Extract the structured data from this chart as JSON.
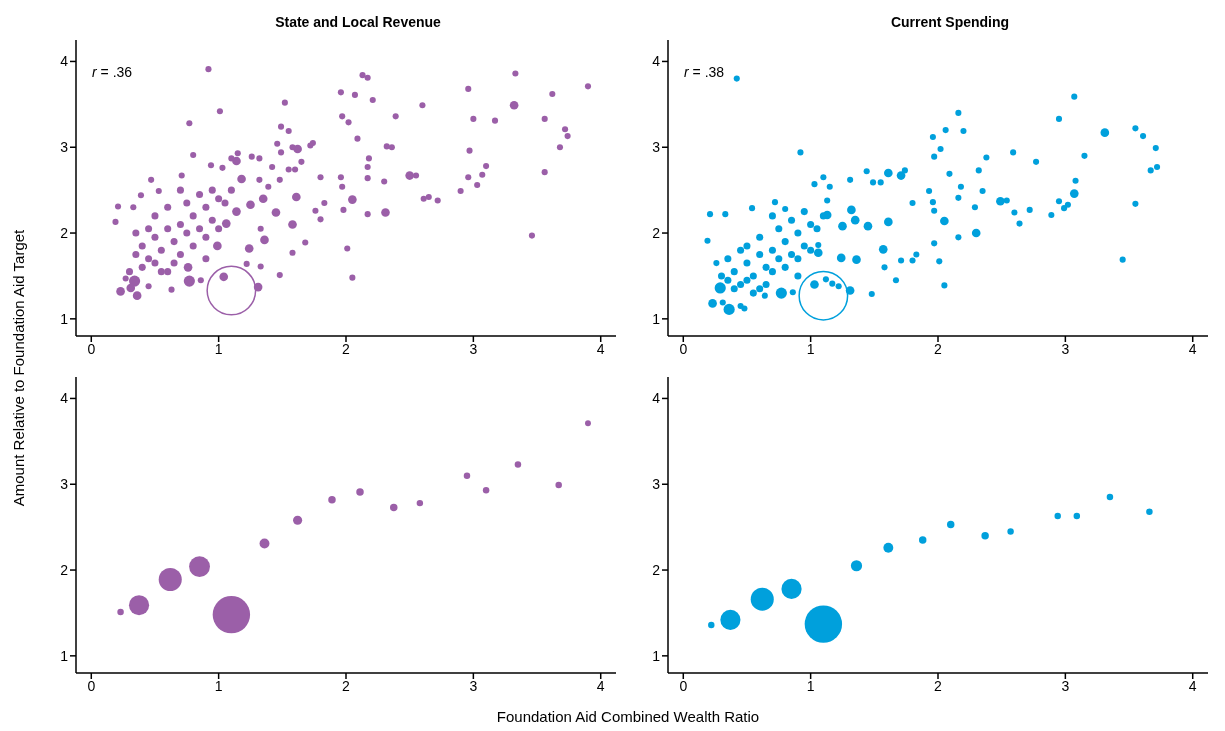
{
  "chart_data": [
    {
      "type": "bubble",
      "title": "State and Local Revenue",
      "ylabel": "Amount Relative to Foundation Aid Target",
      "annotations": [
        "r = .36"
      ],
      "color": "#9b5fa8",
      "x": [
        0.92,
        1.01,
        0.77,
        1.52,
        2.13,
        2.17,
        1.96,
        2.07,
        2.21,
        2.6,
        2.96,
        3.33,
        3.9,
        3.62,
        3.32,
        3.0,
        3.17,
        3.56,
        3.72,
        3.74,
        3.68,
        2.97,
        3.1,
        3.07,
        2.96,
        3.03,
        2.9,
        3.56,
        3.46,
        2.39,
        1.97,
        2.02,
        2.09,
        2.32,
        2.36,
        2.18,
        2.17,
        2.17,
        2.3,
        2.5,
        2.55,
        2.61,
        2.65,
        2.72,
        1.96,
        1.97,
        2.05,
        1.98,
        2.17,
        2.31,
        2.01,
        2.05,
        1.83,
        1.8,
        1.76,
        1.8,
        1.74,
        1.72,
        1.62,
        1.58,
        1.55,
        1.49,
        1.46,
        1.49,
        1.65,
        1.55,
        1.6,
        1.42,
        1.48,
        1.39,
        1.32,
        1.26,
        1.32,
        1.15,
        1.1,
        1.14,
        1.03,
        0.94,
        0.71,
        0.8,
        0.47,
        0.21,
        0.19,
        0.33,
        0.39,
        0.53,
        1.18,
        1.35,
        1.61,
        1.25,
        1.45,
        1.58,
        1.36,
        1.24,
        1.58,
        1.68,
        1.33,
        1.48,
        1.33,
        1.22,
        1.04,
        1.31,
        1.1,
        0.77,
        0.36,
        0.31,
        0.23,
        0.34,
        0.27,
        0.45,
        0.63,
        0.86,
        0.76,
        0.99,
        1.06,
        1.14,
        0.35,
        0.4,
        0.45,
        0.5,
        0.55,
        0.6,
        0.65,
        0.7,
        0.75,
        0.8,
        0.85,
        0.9,
        0.95,
        1.0,
        1.05,
        0.5,
        0.6,
        0.7,
        0.8,
        0.9,
        0.4,
        0.55,
        0.65,
        0.3,
        0.45,
        0.75,
        0.85,
        0.95,
        1.0,
        0.6,
        0.7,
        0.35,
        0.5,
        1.1,
        0.9
      ],
      "values": [
        3.91,
        3.42,
        3.28,
        3.52,
        3.84,
        3.81,
        3.64,
        3.61,
        3.55,
        3.49,
        3.68,
        3.86,
        3.71,
        3.62,
        3.49,
        3.33,
        3.31,
        3.33,
        3.21,
        3.13,
        3.0,
        2.96,
        2.78,
        2.68,
        2.65,
        2.56,
        2.49,
        2.71,
        1.97,
        3.36,
        3.36,
        3.29,
        3.1,
        3.01,
        3.0,
        2.87,
        2.77,
        2.64,
        2.6,
        2.67,
        2.67,
        2.4,
        2.42,
        2.38,
        2.65,
        2.54,
        2.39,
        2.27,
        2.22,
        2.24,
        1.82,
        1.48,
        2.35,
        2.16,
        2.26,
        2.65,
        3.05,
        3.02,
        2.98,
        3.0,
        3.19,
        3.24,
        3.04,
        2.94,
        2.83,
        2.74,
        2.74,
        2.77,
        2.62,
        2.54,
        2.62,
        2.89,
        2.87,
        2.93,
        2.87,
        2.84,
        2.76,
        2.79,
        2.67,
        2.91,
        2.62,
        2.31,
        2.13,
        2.3,
        2.44,
        2.49,
        2.63,
        2.4,
        2.42,
        2.33,
        2.24,
        2.1,
        1.92,
        1.82,
        1.77,
        1.89,
        2.05,
        1.51,
        1.61,
        1.64,
        1.49,
        1.37,
        1.33,
        1.44,
        1.27,
        1.36,
        1.32,
        1.44,
        1.47,
        1.38,
        1.34,
        1.45,
        1.6,
        1.85,
        2.11,
        2.25,
        1.75,
        1.85,
        1.7,
        1.95,
        1.8,
        2.05,
        1.9,
        2.1,
        2.0,
        2.2,
        2.05,
        2.3,
        2.15,
        2.4,
        2.35,
        2.2,
        2.3,
        1.75,
        1.85,
        1.95,
        1.6,
        1.55,
        1.65,
        1.55,
        2.05,
        2.35,
        2.45,
        2.5,
        2.05,
        1.55,
        2.5,
        2.0,
        1.65,
        2.5,
        1.7
      ],
      "sizes": [
        0.015,
        0.015,
        0.015,
        0.015,
        0.015,
        0.015,
        0.015,
        0.015,
        0.015,
        0.015,
        0.015,
        0.015,
        0.015,
        0.015,
        0.03,
        0.015,
        0.015,
        0.015,
        0.015,
        0.015,
        0.015,
        0.015,
        0.015,
        0.015,
        0.015,
        0.015,
        0.015,
        0.015,
        0.015,
        0.015,
        0.015,
        0.015,
        0.015,
        0.015,
        0.015,
        0.015,
        0.015,
        0.015,
        0.015,
        0.03,
        0.015,
        0.015,
        0.015,
        0.015,
        0.015,
        0.015,
        0.03,
        0.015,
        0.015,
        0.03,
        0.015,
        0.015,
        0.015,
        0.015,
        0.015,
        0.015,
        0.015,
        0.015,
        0.03,
        0.015,
        0.015,
        0.015,
        0.015,
        0.015,
        0.015,
        0.015,
        0.015,
        0.015,
        0.015,
        0.015,
        0.015,
        0.015,
        0.015,
        0.015,
        0.015,
        0.03,
        0.015,
        0.015,
        0.015,
        0.015,
        0.015,
        0.015,
        0.015,
        0.015,
        0.015,
        0.015,
        0.03,
        0.03,
        0.03,
        0.03,
        0.03,
        0.03,
        0.03,
        0.03,
        0.015,
        0.015,
        0.015,
        0.015,
        0.015,
        0.015,
        0.03,
        0.03,
        1,
        0.05,
        0.03,
        0.03,
        0.03,
        0.05,
        0.015,
        0.015,
        0.015,
        0.015,
        0.03,
        0.03,
        0.03,
        0.03,
        0.02,
        0.02,
        0.02,
        0.02,
        0.02,
        0.02,
        0.02,
        0.02,
        0.02,
        0.02,
        0.02,
        0.02,
        0.02,
        0.02,
        0.02,
        0.02,
        0.02,
        0.02,
        0.02,
        0.02,
        0.02,
        0.02,
        0.02,
        0.02,
        0.02,
        0.02,
        0.02,
        0.02,
        0.02,
        0.02,
        0.02,
        0.02,
        0.02,
        0.02,
        0.02
      ],
      "xlim": [
        -0.12,
        4.12
      ],
      "xticks": [
        0,
        1,
        2,
        3,
        4
      ],
      "ylim": [
        0.8,
        4.25
      ],
      "yticks": [
        1,
        2,
        3,
        4
      ]
    },
    {
      "type": "bubble",
      "title": "Current Spending",
      "annotations": [
        "r = .38"
      ],
      "color": "#00a0dc",
      "x": [
        0.42,
        0.92,
        3.07,
        2.16,
        2.95,
        2.06,
        2.2,
        1.96,
        2.02,
        1.97,
        3.31,
        3.55,
        3.61,
        3.71,
        3.72,
        3.67,
        3.15,
        2.59,
        2.77,
        2.38,
        2.32,
        2.09,
        2.35,
        2.16,
        2.18,
        2.49,
        2.54,
        2.29,
        2.3,
        2.16,
        2.05,
        1.96,
        1.97,
        1.93,
        1.8,
        1.74,
        1.71,
        1.61,
        1.55,
        1.49,
        1.44,
        1.31,
        1.1,
        1.03,
        1.15,
        2.95,
        3.07,
        3.08,
        2.99,
        2.89,
        2.72,
        2.6,
        2.64,
        3.02,
        3.55,
        3.45,
        2.05,
        2.01,
        1.97,
        1.83,
        1.8,
        1.71,
        1.67,
        1.57,
        1.58,
        1.48,
        1.36,
        1.24,
        1.31,
        1.22,
        1.17,
        1.12,
        1.03,
        1.1,
        0.77,
        0.36,
        0.23,
        0.29,
        0.31,
        0.45,
        0.48,
        0.64,
        0.86,
        0.19,
        0.21,
        0.33,
        0.26,
        0.54,
        0.72,
        0.8,
        1.35,
        1.45,
        1.61,
        1.06,
        1.06,
        1.13,
        1.25,
        1.32,
        1.13,
        0.35,
        0.4,
        0.45,
        0.5,
        0.55,
        0.6,
        0.65,
        0.7,
        0.75,
        0.8,
        0.85,
        0.9,
        0.95,
        1.0,
        1.05,
        0.5,
        0.6,
        0.7,
        0.8,
        0.9,
        0.4,
        0.55,
        0.65,
        0.3,
        0.45,
        0.75,
        0.85,
        0.95,
        1.0,
        0.6,
        0.7,
        0.35,
        0.5,
        1.1,
        0.9
      ],
      "values": [
        3.8,
        2.94,
        3.59,
        3.4,
        3.33,
        3.2,
        3.19,
        3.12,
        2.98,
        2.89,
        3.17,
        3.22,
        3.13,
        2.99,
        2.77,
        2.73,
        2.9,
        2.94,
        2.83,
        2.88,
        2.73,
        2.69,
        2.49,
        2.41,
        2.54,
        2.37,
        2.38,
        2.3,
        2.0,
        1.95,
        2.14,
        2.36,
        2.26,
        2.49,
        2.35,
        2.73,
        2.67,
        2.7,
        2.59,
        2.59,
        2.72,
        2.62,
        2.65,
        2.57,
        2.54,
        2.37,
        2.46,
        2.61,
        2.29,
        2.21,
        2.27,
        2.24,
        2.11,
        2.33,
        2.34,
        1.69,
        1.39,
        1.67,
        1.88,
        1.75,
        1.68,
        1.68,
        1.45,
        1.81,
        1.6,
        1.29,
        1.69,
        1.71,
        1.33,
        1.38,
        1.41,
        1.46,
        1.4,
        1.27,
        1.3,
        1.11,
        1.18,
        1.36,
        1.19,
        1.15,
        1.12,
        1.27,
        1.31,
        1.91,
        2.22,
        2.22,
        1.65,
        2.29,
        2.36,
        2.28,
        2.15,
        2.08,
        2.13,
        1.77,
        1.86,
        2.21,
        2.08,
        2.27,
        2.38,
        1.45,
        1.55,
        1.4,
        1.65,
        1.5,
        1.75,
        1.6,
        1.8,
        1.7,
        1.9,
        1.75,
        2.0,
        1.85,
        2.1,
        2.05,
        1.85,
        1.95,
        1.55,
        1.6,
        1.7,
        1.35,
        1.3,
        1.4,
        1.5,
        1.8,
        2.05,
        2.15,
        2.25,
        1.8,
        1.35,
        2.2,
        1.7,
        1.45,
        2.2,
        1.5
      ],
      "sizes": [
        0.015,
        0.015,
        0.015,
        0.015,
        0.015,
        0.015,
        0.015,
        0.015,
        0.015,
        0.015,
        0.03,
        0.015,
        0.015,
        0.015,
        0.015,
        0.015,
        0.015,
        0.015,
        0.015,
        0.015,
        0.015,
        0.015,
        0.015,
        0.015,
        0.015,
        0.03,
        0.015,
        0.015,
        0.03,
        0.015,
        0.03,
        0.015,
        0.015,
        0.015,
        0.015,
        0.015,
        0.03,
        0.03,
        0.015,
        0.015,
        0.015,
        0.015,
        0.015,
        0.015,
        0.015,
        0.015,
        0.03,
        0.015,
        0.015,
        0.015,
        0.015,
        0.015,
        0.015,
        0.015,
        0.015,
        0.015,
        0.015,
        0.015,
        0.015,
        0.015,
        0.015,
        0.015,
        0.015,
        0.03,
        0.015,
        0.015,
        0.03,
        0.03,
        0.03,
        0.015,
        0.015,
        0.015,
        0.03,
        1,
        0.05,
        0.05,
        0.03,
        0.05,
        0.015,
        0.015,
        0.015,
        0.015,
        0.015,
        0.015,
        0.015,
        0.015,
        0.015,
        0.015,
        0.015,
        0.015,
        0.03,
        0.03,
        0.03,
        0.03,
        0.015,
        0.03,
        0.03,
        0.03,
        0.015,
        0.02,
        0.02,
        0.02,
        0.02,
        0.02,
        0.02,
        0.02,
        0.02,
        0.02,
        0.02,
        0.02,
        0.02,
        0.02,
        0.02,
        0.02,
        0.02,
        0.02,
        0.02,
        0.02,
        0.02,
        0.02,
        0.02,
        0.02,
        0.02,
        0.02,
        0.02,
        0.02,
        0.02,
        0.02,
        0.02,
        0.02,
        0.02,
        0.02,
        0.02,
        0.02
      ],
      "xlim": [
        -0.12,
        4.12
      ],
      "xticks": [
        0,
        1,
        2,
        3,
        4
      ],
      "ylim": [
        0.8,
        4.25
      ],
      "yticks": [
        1,
        2,
        3,
        4
      ]
    },
    {
      "type": "bubble",
      "xlabel": "Foundation Aid Combined Wealth Ratio",
      "color": "#9b5fa8",
      "x": [
        0.23,
        0.375,
        0.62,
        0.85,
        1.1,
        1.36,
        1.62,
        1.89,
        2.11,
        2.375,
        2.58,
        2.95,
        3.1,
        3.35,
        3.67,
        3.9
      ],
      "values": [
        1.51,
        1.59,
        1.89,
        2.04,
        1.48,
        2.31,
        2.58,
        2.82,
        2.91,
        2.73,
        2.78,
        3.1,
        2.93,
        3.23,
        2.99,
        3.71
      ],
      "sizes": [
        0.03,
        0.29,
        0.38,
        0.31,
        1,
        0.07,
        0.06,
        0.04,
        0.04,
        0.04,
        0.03,
        0.03,
        0.03,
        0.03,
        0.03,
        0.025
      ],
      "xlim": [
        -0.12,
        4.12
      ],
      "xticks": [
        0,
        1,
        2,
        3,
        4
      ],
      "ylim": [
        0.8,
        4.25
      ],
      "yticks": [
        1,
        2,
        3,
        4
      ]
    },
    {
      "type": "bubble",
      "color": "#00a0dc",
      "x": [
        0.22,
        0.37,
        0.62,
        0.85,
        1.1,
        1.36,
        1.61,
        1.88,
        2.1,
        2.37,
        2.57,
        2.94,
        3.09,
        3.35,
        3.66
      ],
      "values": [
        1.36,
        1.42,
        1.66,
        1.78,
        1.37,
        2.05,
        2.26,
        2.35,
        2.53,
        2.4,
        2.45,
        2.63,
        2.63,
        2.85,
        2.68
      ],
      "sizes": [
        0.03,
        0.29,
        0.38,
        0.29,
        1,
        0.09,
        0.07,
        0.04,
        0.04,
        0.04,
        0.03,
        0.03,
        0.03,
        0.03,
        0.03
      ],
      "xlim": [
        -0.12,
        4.12
      ],
      "xticks": [
        0,
        1,
        2,
        3,
        4
      ],
      "ylim": [
        0.8,
        4.25
      ],
      "yticks": [
        1,
        2,
        3,
        4
      ]
    }
  ]
}
